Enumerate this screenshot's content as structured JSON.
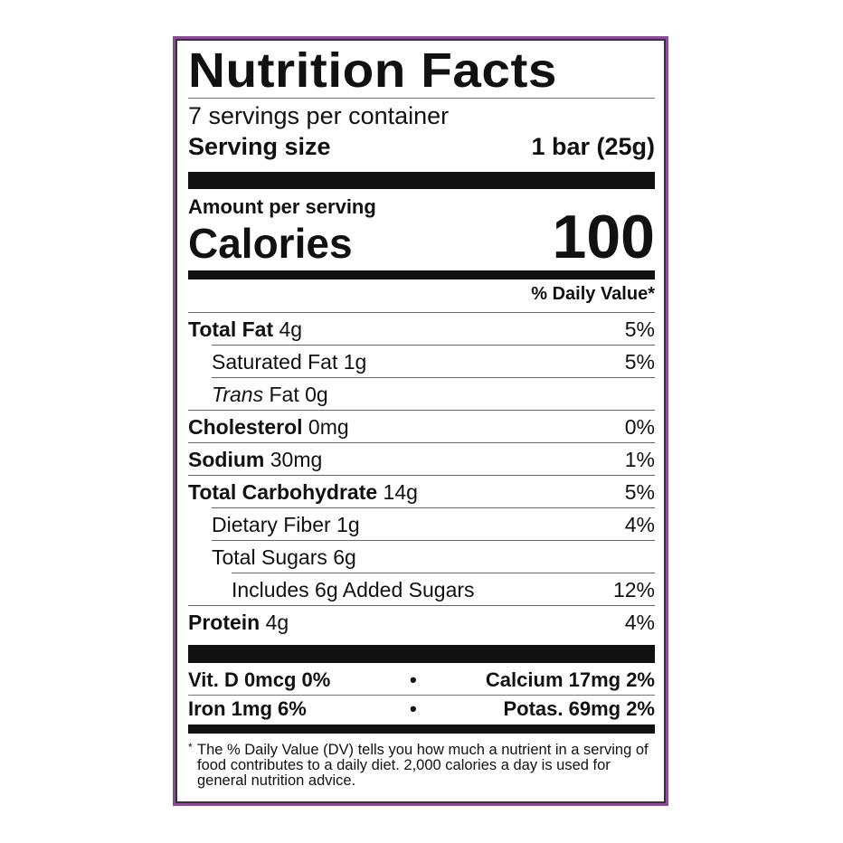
{
  "title": "Nutrition Facts",
  "servings_per_container": "7 servings per container",
  "serving_size_label": "Serving size",
  "serving_size_value": "1 bar (25g)",
  "amount_per_serving": "Amount per serving",
  "calories_label": "Calories",
  "calories_value": "100",
  "daily_value_header": "% Daily Value*",
  "nutrients": [
    {
      "name": "Total Fat",
      "amount": "4g",
      "dv": "5%",
      "bold": true,
      "indent": 0
    },
    {
      "name": "Saturated Fat",
      "amount": "1g",
      "dv": "5%",
      "bold": false,
      "indent": 1
    },
    {
      "name": "Trans",
      "name_suffix": "Fat",
      "amount": "0g",
      "dv": "",
      "bold": false,
      "indent": 1
    },
    {
      "name": "Cholesterol",
      "amount": "0mg",
      "dv": "0%",
      "bold": true,
      "indent": 0
    },
    {
      "name": "Sodium",
      "amount": "30mg",
      "dv": "1%",
      "bold": true,
      "indent": 0
    },
    {
      "name": "Total Carbohydrate",
      "amount": "14g",
      "dv": "5%",
      "bold": true,
      "indent": 0
    },
    {
      "name": "Dietary Fiber",
      "amount": "1g",
      "dv": "4%",
      "bold": false,
      "indent": 1
    },
    {
      "name": "Total Sugars",
      "amount": "6g",
      "dv": "",
      "bold": false,
      "indent": 1
    },
    {
      "name": "Includes 6g Added Sugars",
      "amount": "",
      "dv": "12%",
      "bold": false,
      "indent": 2
    },
    {
      "name": "Protein",
      "amount": "4g",
      "dv": "4%",
      "bold": true,
      "indent": 0
    }
  ],
  "minerals": [
    {
      "left": "Vit. D 0mcg 0%",
      "right": "Calcium 17mg 2%"
    },
    {
      "left": "Iron 1mg 6%",
      "right": "Potas. 69mg 2%"
    }
  ],
  "bullet": "•",
  "footnote_marker": "*",
  "footnote": "The % Daily Value (DV) tells you how much a nutrient in a serving of food contributes to a daily diet. 2,000 calories a day is used for general nutrition advice.",
  "colors": {
    "border": "#8b4c9c",
    "text": "#111111"
  }
}
